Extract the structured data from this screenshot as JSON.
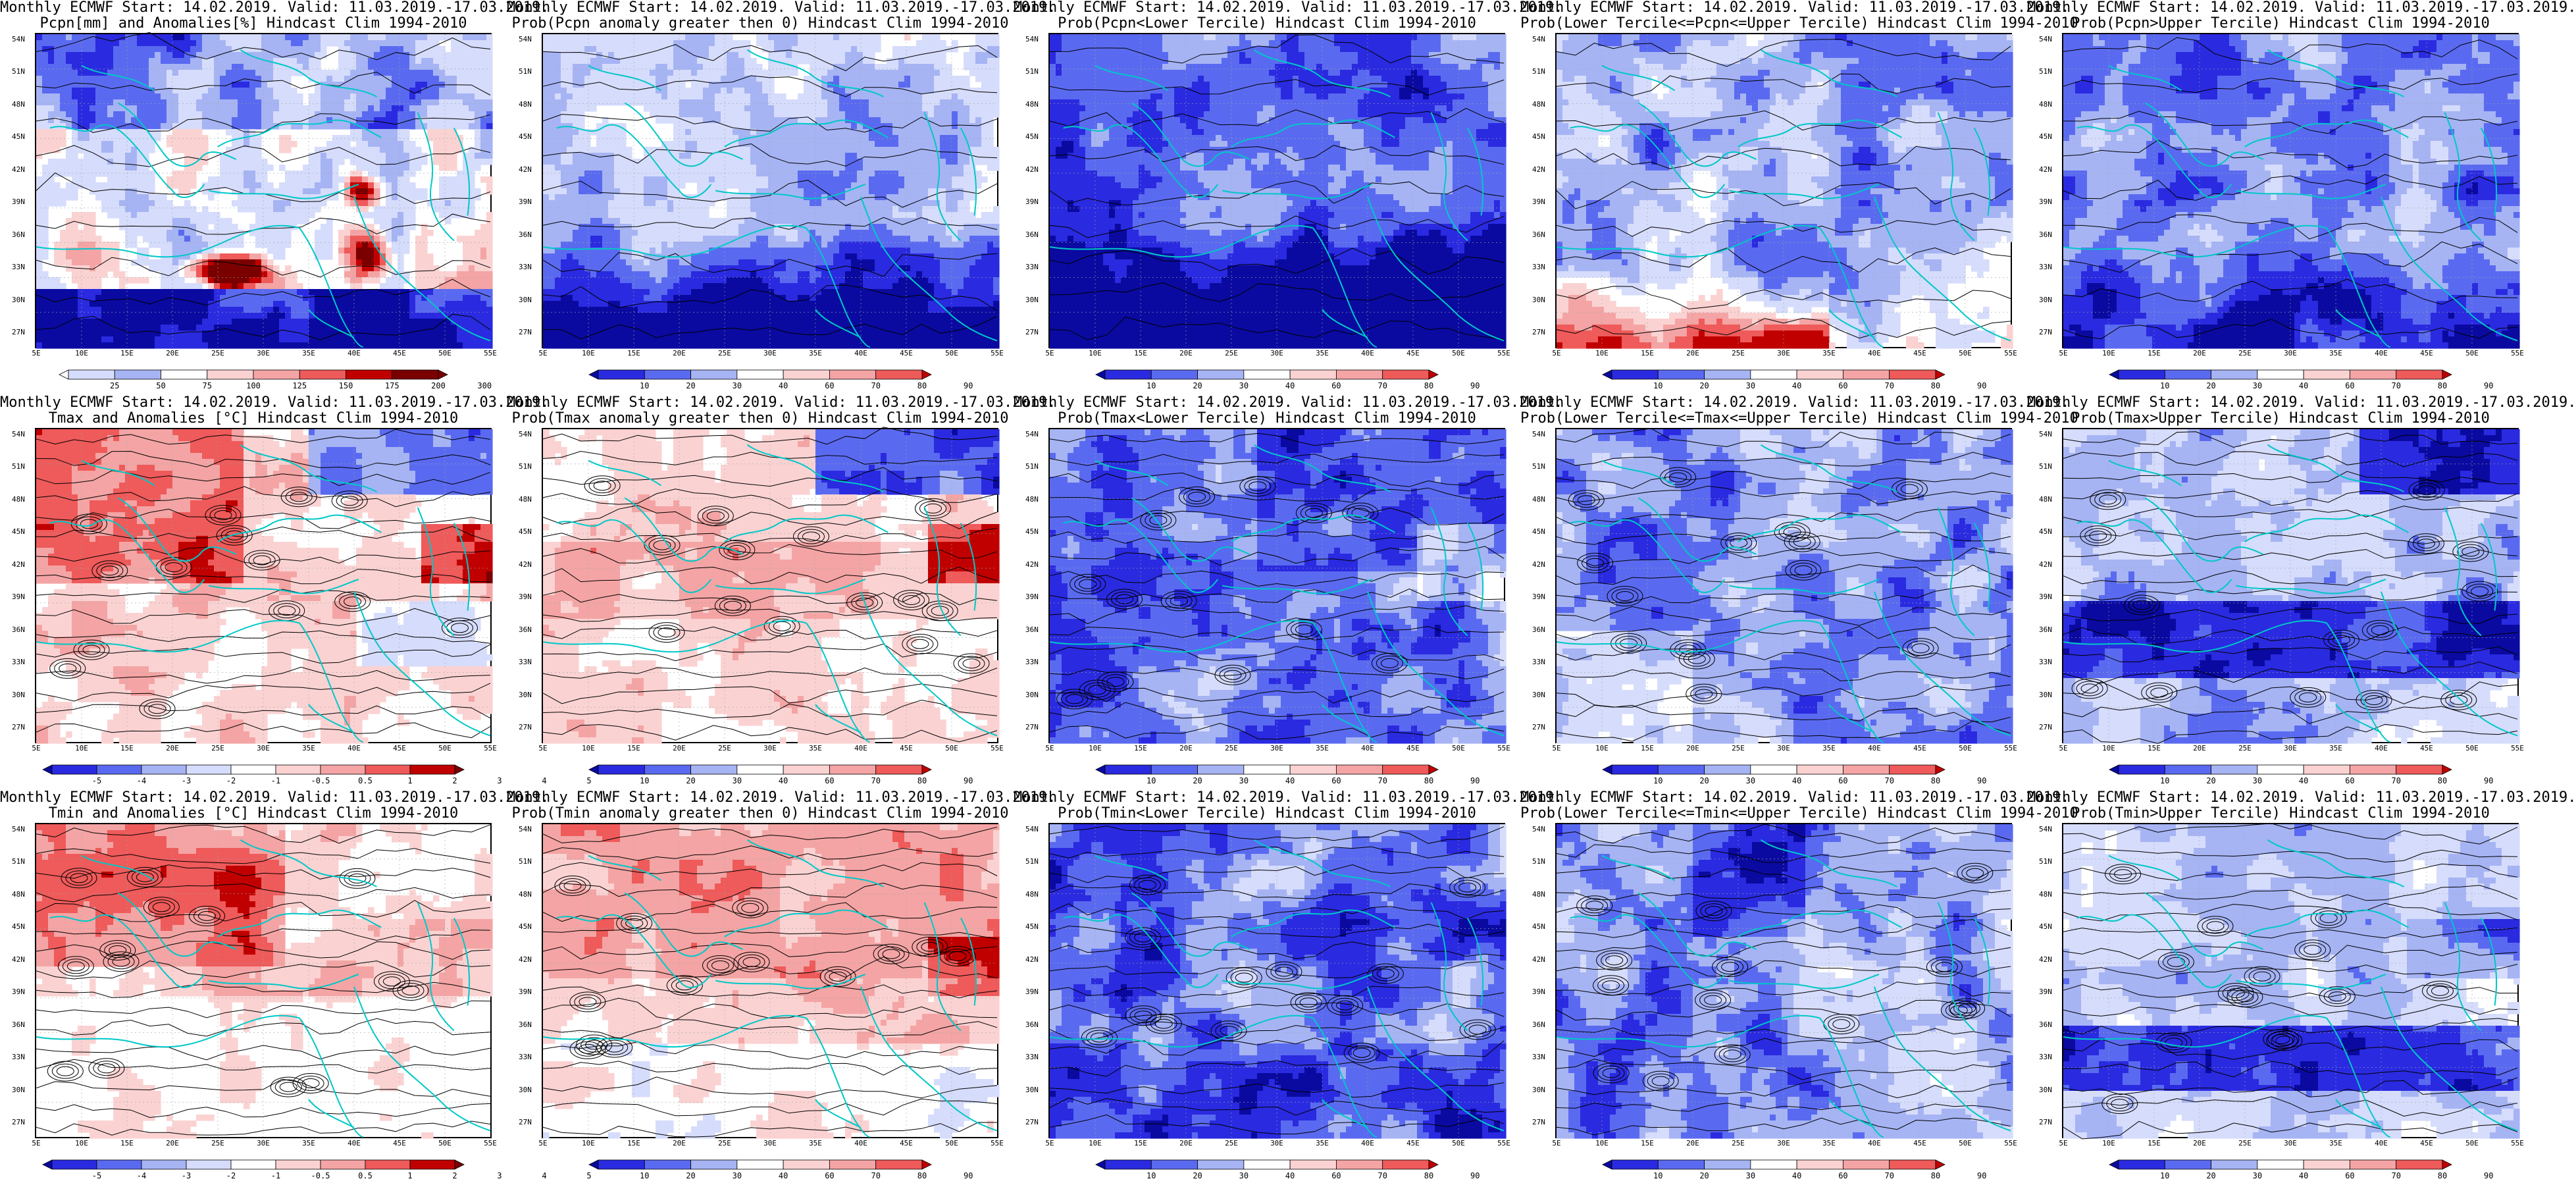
{
  "palette": {
    "deep_blue": "#0a0aa0",
    "blue": "#2a2ae0",
    "mid_blue": "#5a6af0",
    "light_blue": "#a6b4f4",
    "pale_blue": "#d6dcfb",
    "white": "#ffffff",
    "pale_red": "#fbd2d2",
    "light_red": "#f4a4a4",
    "red": "#ef5a5a",
    "deep_red": "#c00000",
    "darkest_red": "#7a0000",
    "coast": "#00c8c8",
    "contour": "#000000"
  },
  "axes": {
    "y_ticks": [
      "54N",
      "51N",
      "48N",
      "45N",
      "42N",
      "39N",
      "36N",
      "33N",
      "30N",
      "27N"
    ],
    "x_ticks": [
      "5E",
      "10E",
      "15E",
      "20E",
      "25E",
      "30E",
      "35E",
      "40E",
      "45E",
      "50E",
      "55E"
    ]
  },
  "scales": {
    "precip": [
      "25",
      "50",
      "75",
      "100",
      "125",
      "150",
      "175",
      "200",
      "300"
    ],
    "prob": [
      "10",
      "20",
      "30",
      "40",
      "60",
      "70",
      "80",
      "90"
    ],
    "temp": [
      "-5",
      "-4",
      "-3",
      "-2",
      "-1",
      "-0.5",
      "0.5",
      "1",
      "2",
      "3",
      "4",
      "5"
    ]
  },
  "panels": [
    {
      "t1": "Monthly ECMWF Start: 14.02.2019. Valid: 11.03.2019.-17.03.2019.",
      "t2": "Pcpn[mm] and Anomalies[%] Hindcast Clim 1994-2010",
      "field": "precip",
      "scale": "precip"
    },
    {
      "t1": "Monthly ECMWF Start: 14.02.2019. Valid: 11.03.2019.-17.03.2019.",
      "t2": "Prob(Pcpn anomaly greater then 0) Hindcast Clim 1994-2010",
      "field": "pp_prob",
      "scale": "prob"
    },
    {
      "t1": "Monthly ECMWF Start: 14.02.2019. Valid: 11.03.2019.-17.03.2019.",
      "t2": "Prob(Pcpn<Lower Tercile) Hindcast Clim 1994-2010",
      "field": "pp_low",
      "scale": "prob"
    },
    {
      "t1": "Monthly ECMWF Start: 14.02.2019. Valid: 11.03.2019.-17.03.2019.",
      "t2": "Prob(Lower Tercile<=Pcpn<=Upper Tercile) Hindcast Clim 1994-2010",
      "field": "pp_mid",
      "scale": "prob"
    },
    {
      "t1": "Monthly ECMWF Start: 14.02.2019. Valid: 11.03.2019.-17.03.2019.",
      "t2": "Prob(Pcpn>Upper Tercile) Hindcast Clim 1994-2010",
      "field": "pp_up",
      "scale": "prob"
    },
    {
      "t1": "Monthly ECMWF Start: 14.02.2019. Valid: 11.03.2019.-17.03.2019.",
      "t2": "Tmax and Anomalies [°C] Hindcast Clim 1994-2010",
      "field": "tmax",
      "scale": "temp"
    },
    {
      "t1": "Monthly ECMWF Start: 14.02.2019. Valid: 11.03.2019.-17.03.2019.",
      "t2": "Prob(Tmax anomaly greater then 0) Hindcast Clim 1994-2010",
      "field": "tmax_prob",
      "scale": "prob"
    },
    {
      "t1": "Monthly ECMWF Start: 14.02.2019. Valid: 11.03.2019.-17.03.2019.",
      "t2": "Prob(Tmax<Lower Tercile) Hindcast Clim 1994-2010",
      "field": "tx_low",
      "scale": "prob"
    },
    {
      "t1": "Monthly ECMWF Start: 14.02.2019. Valid: 11.03.2019.-17.03.2019.",
      "t2": "Prob(Lower Tercile<=Tmax<=Upper Tercile) Hindcast Clim 1994-2010",
      "field": "tx_mid",
      "scale": "prob"
    },
    {
      "t1": "Monthly ECMWF Start: 14.02.2019. Valid: 11.03.2019.-17.03.2019.",
      "t2": "Prob(Tmax>Upper Tercile) Hindcast Clim 1994-2010",
      "field": "tx_up",
      "scale": "prob"
    },
    {
      "t1": "Monthly ECMWF Start: 14.02.2019. Valid: 11.03.2019.-17.03.2019.",
      "t2": "Tmin and Anomalies [°C] Hindcast Clim 1994-2010",
      "field": "tmin",
      "scale": "temp"
    },
    {
      "t1": "Monthly ECMWF Start: 14.02.2019. Valid: 11.03.2019.-17.03.2019.",
      "t2": "Prob(Tmin anomaly greater then 0) Hindcast Clim 1994-2010",
      "field": "tmin_prob",
      "scale": "prob"
    },
    {
      "t1": "Monthly ECMWF Start: 14.02.2019. Valid: 11.03.2019.-17.03.2019.",
      "t2": "Prob(Tmin<Lower Tercile) Hindcast Clim 1994-2010",
      "field": "tn_low",
      "scale": "prob"
    },
    {
      "t1": "Monthly ECMWF Start: 14.02.2019. Valid: 11.03.2019.-17.03.2019.",
      "t2": "Prob(Lower Tercile<=Tmin<=Upper Tercile) Hindcast Clim 1994-2010",
      "field": "tn_mid",
      "scale": "prob"
    },
    {
      "t1": "Monthly ECMWF Start: 14.02.2019. Valid: 11.03.2019.-17.03.2019.",
      "t2": "Prob(Tmin>Upper Tercile) Hindcast Clim 1994-2010",
      "field": "tn_up",
      "scale": "prob"
    }
  ]
}
